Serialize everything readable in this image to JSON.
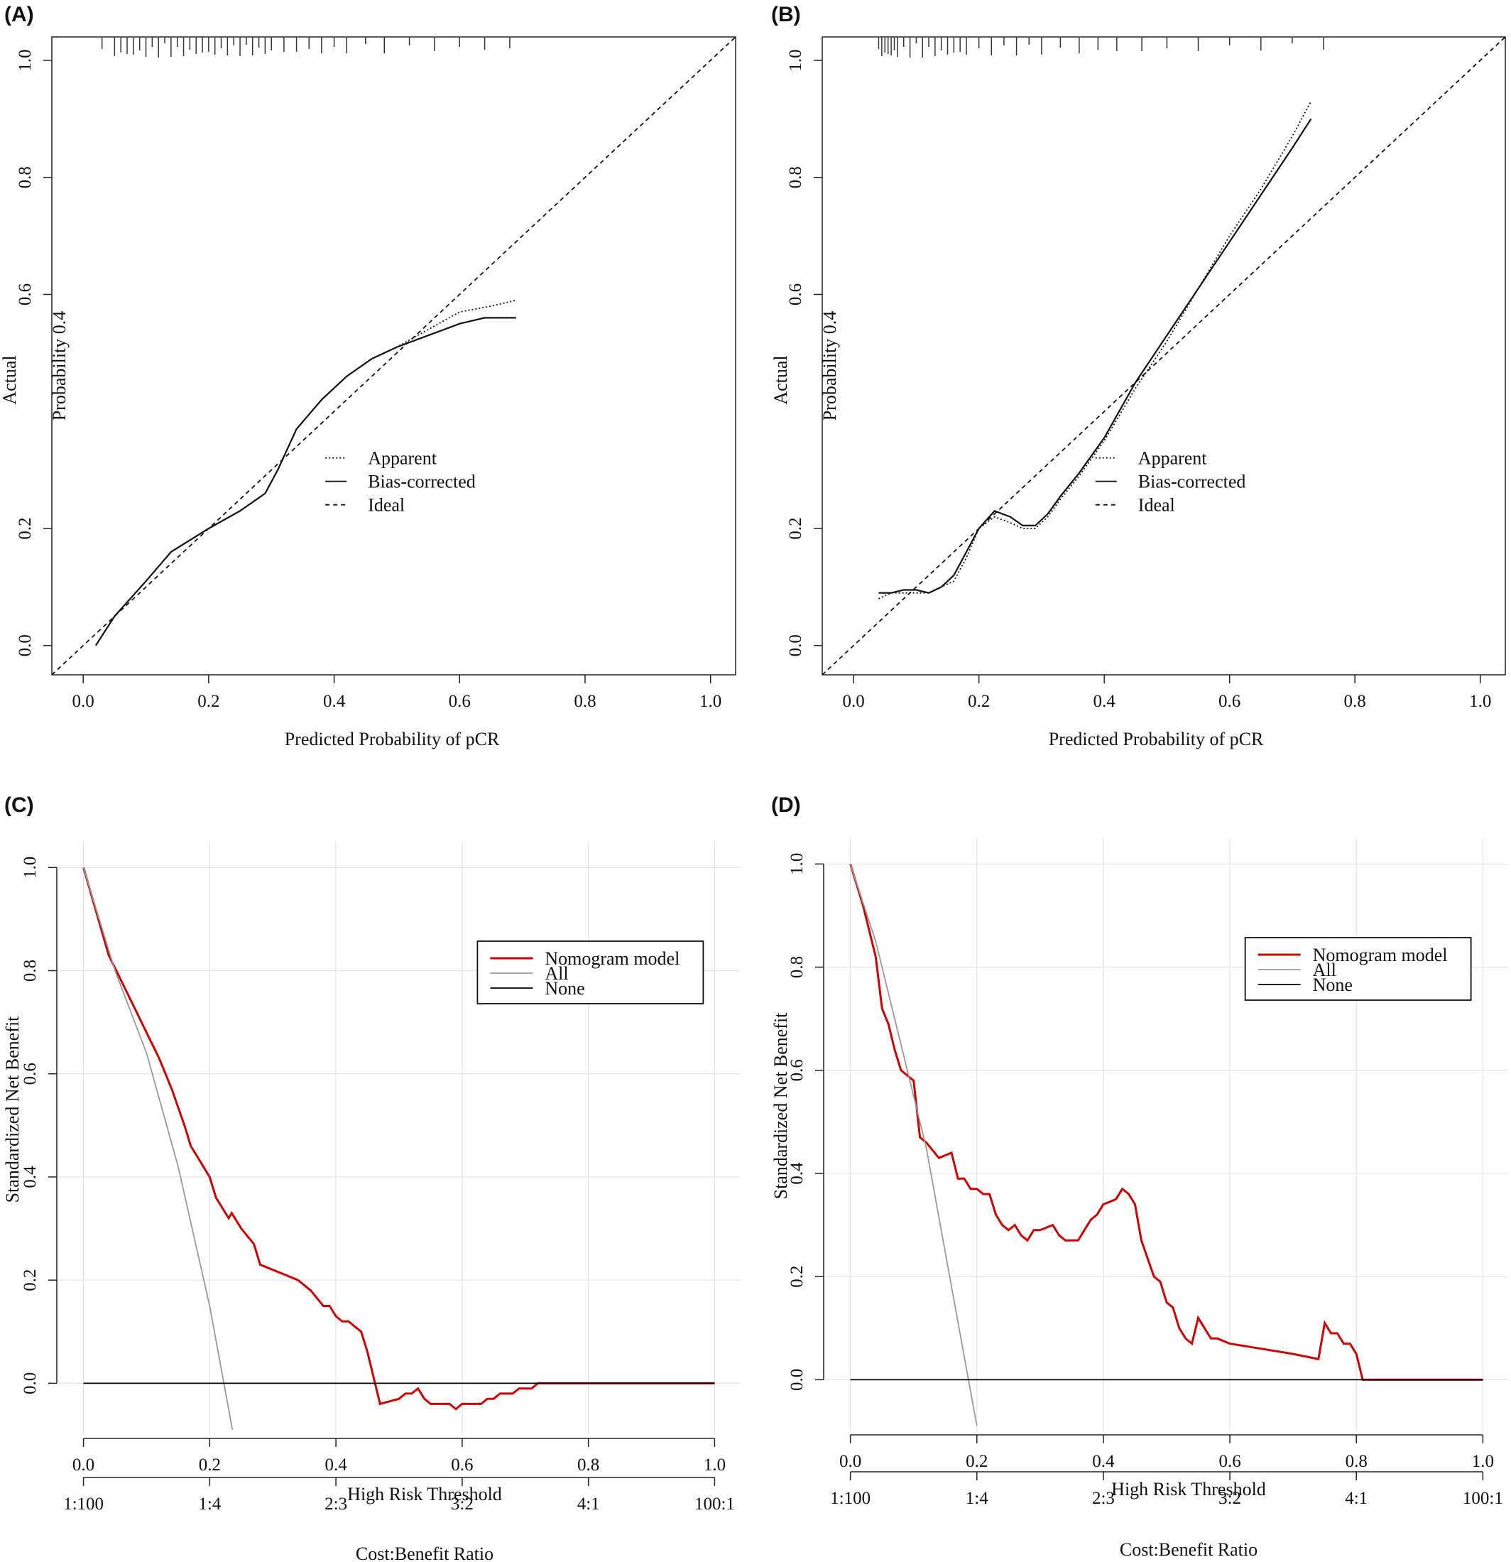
{
  "chart_data": [
    {
      "id": "A",
      "type": "line",
      "panel_label": "(A)",
      "xlabel": "Predicted Probability of pCR",
      "ylabel": "Actual",
      "ylabel_overlay": "Probability 0.4",
      "xlim": [
        -0.05,
        1.04
      ],
      "ylim": [
        -0.05,
        1.04
      ],
      "xticks": [
        "0.0",
        "0.2",
        "0.4",
        "0.6",
        "0.8",
        "1.0"
      ],
      "yticks": [
        "0.0",
        "0.2",
        "0.6",
        "0.8",
        "1.0"
      ],
      "legend": [
        "Apparent",
        "Bias-corrected",
        "Ideal"
      ],
      "legend_position": "center-right",
      "rug": [
        0.03,
        0.05,
        0.06,
        0.07,
        0.08,
        0.09,
        0.1,
        0.11,
        0.12,
        0.13,
        0.14,
        0.15,
        0.16,
        0.17,
        0.18,
        0.19,
        0.2,
        0.21,
        0.22,
        0.23,
        0.24,
        0.25,
        0.26,
        0.27,
        0.28,
        0.29,
        0.3,
        0.32,
        0.34,
        0.36,
        0.38,
        0.4,
        0.42,
        0.45,
        0.48,
        0.52,
        0.56,
        0.6,
        0.64,
        0.68
      ],
      "series": [
        {
          "name": "Apparent",
          "style": "dotted",
          "x": [
            0.02,
            0.05,
            0.1,
            0.14,
            0.2,
            0.25,
            0.29,
            0.31,
            0.34,
            0.38,
            0.42,
            0.46,
            0.5,
            0.55,
            0.6,
            0.65,
            0.69
          ],
          "y": [
            0.0,
            0.05,
            0.11,
            0.16,
            0.2,
            0.23,
            0.26,
            0.3,
            0.37,
            0.42,
            0.46,
            0.49,
            0.51,
            0.54,
            0.57,
            0.58,
            0.59
          ]
        },
        {
          "name": "Bias-corrected",
          "style": "solid",
          "x": [
            0.02,
            0.05,
            0.1,
            0.14,
            0.2,
            0.25,
            0.29,
            0.31,
            0.34,
            0.38,
            0.42,
            0.46,
            0.5,
            0.55,
            0.6,
            0.64,
            0.69
          ],
          "y": [
            0.0,
            0.05,
            0.11,
            0.16,
            0.2,
            0.23,
            0.26,
            0.3,
            0.37,
            0.42,
            0.46,
            0.49,
            0.51,
            0.53,
            0.55,
            0.56,
            0.56
          ]
        },
        {
          "name": "Ideal",
          "style": "dashed",
          "x": [
            -0.05,
            1.04
          ],
          "y": [
            -0.05,
            1.04
          ]
        }
      ]
    },
    {
      "id": "B",
      "type": "line",
      "panel_label": "(B)",
      "xlabel": "Predicted Probability of pCR",
      "ylabel": "Actual",
      "ylabel_overlay": "Probability 0.4",
      "xlim": [
        -0.05,
        1.04
      ],
      "ylim": [
        -0.05,
        1.04
      ],
      "xticks": [
        "0.0",
        "0.2",
        "0.4",
        "0.6",
        "0.8",
        "1.0"
      ],
      "yticks": [
        "0.0",
        "0.2",
        "0.6",
        "0.8",
        "1.0"
      ],
      "legend": [
        "Apparent",
        "Bias-corrected",
        "Ideal"
      ],
      "legend_position": "center-right",
      "rug": [
        0.04,
        0.045,
        0.05,
        0.055,
        0.06,
        0.065,
        0.07,
        0.08,
        0.09,
        0.1,
        0.11,
        0.12,
        0.13,
        0.14,
        0.15,
        0.16,
        0.17,
        0.18,
        0.2,
        0.22,
        0.24,
        0.26,
        0.28,
        0.3,
        0.33,
        0.36,
        0.39,
        0.42,
        0.46,
        0.5,
        0.55,
        0.6,
        0.65,
        0.7,
        0.75
      ],
      "series": [
        {
          "name": "Apparent",
          "style": "dotted",
          "x": [
            0.04,
            0.06,
            0.08,
            0.1,
            0.12,
            0.14,
            0.16,
            0.18,
            0.2,
            0.225,
            0.25,
            0.27,
            0.29,
            0.31,
            0.33,
            0.36,
            0.4,
            0.45,
            0.5,
            0.55,
            0.6,
            0.65,
            0.7,
            0.73
          ],
          "y": [
            0.08,
            0.09,
            0.09,
            0.09,
            0.09,
            0.1,
            0.11,
            0.15,
            0.2,
            0.22,
            0.21,
            0.2,
            0.2,
            0.22,
            0.25,
            0.29,
            0.35,
            0.44,
            0.52,
            0.61,
            0.7,
            0.78,
            0.87,
            0.93
          ]
        },
        {
          "name": "Bias-corrected",
          "style": "solid",
          "x": [
            0.04,
            0.06,
            0.08,
            0.1,
            0.12,
            0.14,
            0.16,
            0.18,
            0.2,
            0.225,
            0.25,
            0.27,
            0.29,
            0.31,
            0.33,
            0.36,
            0.4,
            0.45,
            0.5,
            0.55,
            0.6,
            0.65,
            0.7,
            0.73
          ],
          "y": [
            0.09,
            0.09,
            0.095,
            0.095,
            0.09,
            0.1,
            0.12,
            0.16,
            0.2,
            0.23,
            0.22,
            0.205,
            0.205,
            0.225,
            0.255,
            0.295,
            0.355,
            0.45,
            0.53,
            0.61,
            0.69,
            0.77,
            0.85,
            0.9
          ]
        },
        {
          "name": "Ideal",
          "style": "dashed",
          "x": [
            -0.05,
            1.04
          ],
          "y": [
            -0.05,
            1.04
          ]
        }
      ]
    },
    {
      "id": "C",
      "type": "line",
      "panel_label": "(C)",
      "xlabel": "High Risk Threshold",
      "ylabel": "Standardized Net Benefit",
      "xlabel2": "Cost:Benefit Ratio",
      "xlim": [
        -0.04,
        1.04
      ],
      "ylim": [
        -0.1,
        1.05
      ],
      "grid": true,
      "xticks": [
        "0.0",
        "0.2",
        "0.4",
        "0.6",
        "0.8",
        "1.0"
      ],
      "yticks": [
        "0.0",
        "0.2",
        "0.4",
        "0.6",
        "0.8",
        "1.0"
      ],
      "cost_benefit_ticks": [
        "1:100",
        "1:4",
        "2:3",
        "3:2",
        "4:1",
        "100:1"
      ],
      "legend": [
        "Nomogram model",
        "All",
        "None"
      ],
      "legend_position": "top-right",
      "series": [
        {
          "name": "Nomogram model",
          "color": "#cc0000",
          "x": [
            0.0,
            0.04,
            0.08,
            0.1,
            0.12,
            0.14,
            0.16,
            0.17,
            0.18,
            0.2,
            0.21,
            0.23,
            0.235,
            0.25,
            0.27,
            0.28,
            0.3,
            0.32,
            0.34,
            0.36,
            0.38,
            0.39,
            0.4,
            0.41,
            0.42,
            0.44,
            0.45,
            0.46,
            0.47,
            0.5,
            0.51,
            0.52,
            0.53,
            0.54,
            0.55,
            0.56,
            0.57,
            0.58,
            0.59,
            0.6,
            0.61,
            0.62,
            0.63,
            0.64,
            0.65,
            0.66,
            0.67,
            0.68,
            0.69,
            0.7,
            0.71,
            0.72,
            1.0
          ],
          "y": [
            1.0,
            0.83,
            0.73,
            0.68,
            0.63,
            0.57,
            0.5,
            0.46,
            0.44,
            0.4,
            0.36,
            0.32,
            0.33,
            0.3,
            0.27,
            0.23,
            0.22,
            0.21,
            0.2,
            0.18,
            0.15,
            0.15,
            0.13,
            0.12,
            0.12,
            0.1,
            0.06,
            0.01,
            -0.04,
            -0.03,
            -0.02,
            -0.02,
            -0.01,
            -0.03,
            -0.04,
            -0.04,
            -0.04,
            -0.04,
            -0.05,
            -0.04,
            -0.04,
            -0.04,
            -0.04,
            -0.03,
            -0.03,
            -0.02,
            -0.02,
            -0.02,
            -0.01,
            -0.01,
            -0.01,
            0.0,
            0.0
          ]
        },
        {
          "name": "All",
          "color": "#999999",
          "x": [
            0.0,
            0.05,
            0.1,
            0.15,
            0.2,
            0.236
          ],
          "y": [
            1.0,
            0.8,
            0.64,
            0.42,
            0.15,
            -0.09
          ]
        },
        {
          "name": "None",
          "color": "#000000",
          "x": [
            0.0,
            1.0
          ],
          "y": [
            0.0,
            0.0
          ]
        }
      ]
    },
    {
      "id": "D",
      "type": "line",
      "panel_label": "(D)",
      "xlabel": "High Risk Threshold",
      "ylabel": "Standardized Net Benefit",
      "xlabel2": "Cost:Benefit Ratio",
      "xlim": [
        -0.04,
        1.04
      ],
      "ylim": [
        -0.1,
        1.05
      ],
      "grid": true,
      "xticks": [
        "0.0",
        "0.2",
        "0.4",
        "0.6",
        "0.8",
        "1.0"
      ],
      "yticks": [
        "0.0",
        "0.2",
        "0.4",
        "0.6",
        "0.8",
        "1.0"
      ],
      "cost_benefit_ticks": [
        "1:100",
        "1:4",
        "2:3",
        "3:2",
        "4:1",
        "100:1"
      ],
      "legend": [
        "Nomogram model",
        "All",
        "None"
      ],
      "legend_position": "top-right",
      "series": [
        {
          "name": "Nomogram model",
          "color": "#cc0000",
          "x": [
            0.0,
            0.02,
            0.04,
            0.05,
            0.06,
            0.07,
            0.08,
            0.1,
            0.11,
            0.12,
            0.14,
            0.16,
            0.17,
            0.18,
            0.19,
            0.2,
            0.21,
            0.22,
            0.23,
            0.24,
            0.25,
            0.26,
            0.27,
            0.28,
            0.29,
            0.3,
            0.32,
            0.33,
            0.34,
            0.36,
            0.38,
            0.39,
            0.4,
            0.42,
            0.43,
            0.44,
            0.45,
            0.46,
            0.48,
            0.49,
            0.5,
            0.51,
            0.52,
            0.53,
            0.54,
            0.55,
            0.56,
            0.57,
            0.58,
            0.6,
            0.65,
            0.7,
            0.74,
            0.75,
            0.76,
            0.77,
            0.78,
            0.79,
            0.8,
            0.81,
            1.0
          ],
          "y": [
            1.0,
            0.92,
            0.82,
            0.72,
            0.69,
            0.64,
            0.6,
            0.58,
            0.47,
            0.46,
            0.43,
            0.44,
            0.39,
            0.39,
            0.37,
            0.37,
            0.36,
            0.36,
            0.32,
            0.3,
            0.29,
            0.3,
            0.28,
            0.27,
            0.29,
            0.29,
            0.3,
            0.28,
            0.27,
            0.27,
            0.31,
            0.32,
            0.34,
            0.35,
            0.37,
            0.36,
            0.34,
            0.27,
            0.2,
            0.19,
            0.15,
            0.14,
            0.1,
            0.08,
            0.07,
            0.12,
            0.1,
            0.08,
            0.08,
            0.07,
            0.06,
            0.05,
            0.04,
            0.11,
            0.09,
            0.09,
            0.07,
            0.07,
            0.05,
            0.0,
            0.0
          ]
        },
        {
          "name": "All",
          "color": "#999999",
          "x": [
            0.0,
            0.04,
            0.08,
            0.12,
            0.16,
            0.2
          ],
          "y": [
            1.0,
            0.85,
            0.65,
            0.45,
            0.18,
            -0.09
          ]
        },
        {
          "name": "None",
          "color": "#000000",
          "x": [
            0.0,
            1.0
          ],
          "y": [
            0.0,
            0.0
          ]
        }
      ]
    }
  ]
}
